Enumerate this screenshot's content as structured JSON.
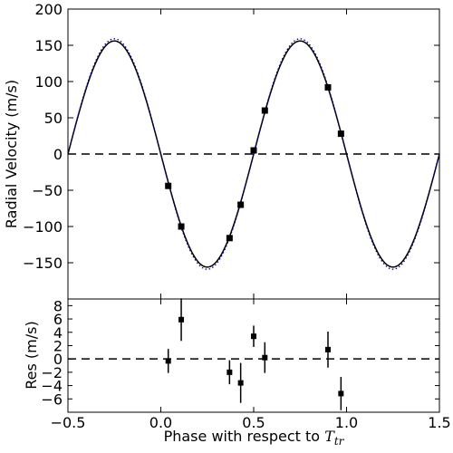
{
  "chart_data": [
    {
      "type": "line",
      "panel": "radial-velocity",
      "ylabel": "Radial Velocity (m/s)",
      "xlim": [
        -0.5,
        1.5
      ],
      "ylim": [
        -200,
        200
      ],
      "yticks": [
        -150,
        -100,
        -50,
        0,
        50,
        100,
        150,
        200
      ],
      "ytick_labels": [
        "−150",
        "−100",
        "−50",
        "0",
        "50",
        "100",
        "150",
        "200"
      ],
      "grid": false,
      "colors": {
        "model_solid": "#000000",
        "model_dotted": "#00008b",
        "data": "#000000",
        "reference": "#000000"
      },
      "series": [
        {
          "style": "solid",
          "model": "sinusoid",
          "amplitude": 156,
          "period": 1.0,
          "zero_crossing_phase": 0.0
        },
        {
          "style": "dotted",
          "model": "sinusoid",
          "amplitude": 159,
          "period": 1.0,
          "zero_crossing_phase": 0.0
        },
        {
          "style": "dashed",
          "model": "constant",
          "y": 0
        }
      ],
      "points": [
        {
          "x": 0.04,
          "y": -44
        },
        {
          "x": 0.11,
          "y": -100
        },
        {
          "x": 0.37,
          "y": -116
        },
        {
          "x": 0.43,
          "y": -70
        },
        {
          "x": 0.5,
          "y": 5
        },
        {
          "x": 0.56,
          "y": 60
        },
        {
          "x": 0.9,
          "y": 92
        },
        {
          "x": 0.97,
          "y": 28
        }
      ]
    },
    {
      "type": "scatter",
      "panel": "residuals",
      "ylabel": "Res (m/s)",
      "xlabel_main": "Phase with respect to ",
      "xlabel_symbol": "T",
      "xlabel_subscript": "tr",
      "xlim": [
        -0.5,
        1.5
      ],
      "ylim": [
        -8,
        9
      ],
      "xticks": [
        -0.5,
        0.0,
        0.5,
        1.0,
        1.5
      ],
      "xtick_labels": [
        "−0.5",
        "0.0",
        "0.5",
        "1.0",
        "1.5"
      ],
      "yticks": [
        -6,
        -4,
        -2,
        0,
        2,
        4,
        6,
        8
      ],
      "ytick_labels": [
        "−6",
        "−4",
        "−2",
        "0",
        "2",
        "4",
        "6",
        "8"
      ],
      "grid": false,
      "points": [
        {
          "x": 0.04,
          "y": -0.3,
          "err": 1.8
        },
        {
          "x": 0.11,
          "y": 5.9,
          "err": 3.2
        },
        {
          "x": 0.37,
          "y": -2.0,
          "err": 1.8
        },
        {
          "x": 0.43,
          "y": -3.6,
          "err": 3.0
        },
        {
          "x": 0.5,
          "y": 3.4,
          "err": 1.6
        },
        {
          "x": 0.56,
          "y": 0.2,
          "err": 2.3
        },
        {
          "x": 0.9,
          "y": 1.4,
          "err": 2.7
        },
        {
          "x": 0.97,
          "y": -5.2,
          "err": 2.5
        }
      ],
      "reference_line": {
        "style": "dashed",
        "y": 0
      }
    }
  ]
}
